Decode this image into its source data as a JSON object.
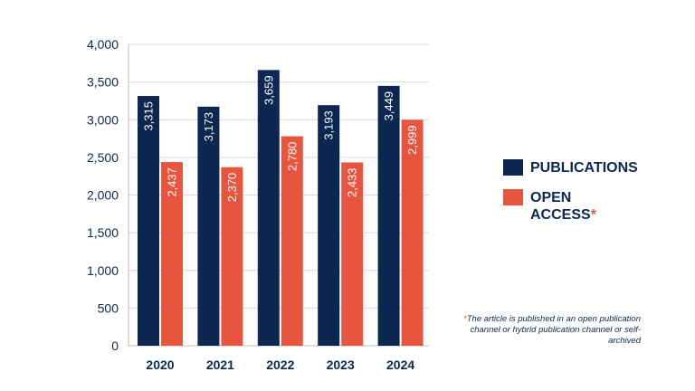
{
  "colors": {
    "publications": "#0c2751",
    "open_access": "#e8553f",
    "grid": "#d9d9d9",
    "text": "#0c2751"
  },
  "chart_data": {
    "type": "bar",
    "categories": [
      "2020",
      "2021",
      "2022",
      "2023",
      "2024"
    ],
    "series": [
      {
        "name": "PUBLICATIONS",
        "values": [
          3315,
          3173,
          3659,
          3193,
          3449
        ],
        "labels": [
          "3,315",
          "3,173",
          "3,659",
          "3,193",
          "3,449"
        ]
      },
      {
        "name": "OPEN ACCESS",
        "values": [
          2437,
          2370,
          2780,
          2433,
          2999
        ],
        "labels": [
          "2,437",
          "2,370",
          "2,780",
          "2,433",
          "2,999"
        ]
      }
    ],
    "ylim": [
      0,
      4000
    ],
    "yticks": [
      0,
      500,
      1000,
      1500,
      2000,
      2500,
      3000,
      3500,
      4000
    ],
    "ytick_labels": [
      "0",
      "500",
      "1,000",
      "1,500",
      "2,000",
      "2,500",
      "3,000",
      "3,500",
      "4,000"
    ],
    "grid": true,
    "legend_position": "right"
  },
  "legend": {
    "publications_label": "PUBLICATIONS",
    "open_access_label_line1": "OPEN",
    "open_access_label_line2": "ACCESS",
    "asterisk": "*"
  },
  "footnote": {
    "asterisk": "*",
    "text": "The article is published in an open publication channel or hybrid publication channel or self-archived"
  }
}
